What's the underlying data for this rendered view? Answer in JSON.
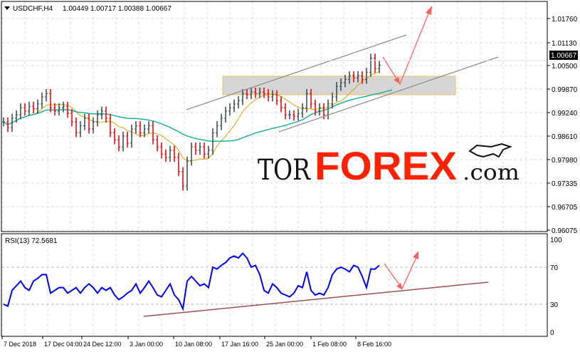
{
  "header": {
    "symbol": "USDCHF,H4",
    "ohlc": "1.00449 1.00717 1.00388 1.00667"
  },
  "price_axis": [
    "1.01760",
    "1.01130",
    "1.00500",
    "0.99870",
    "0.99240",
    "0.98610",
    "0.97980",
    "0.97335",
    "0.96705",
    "0.96075"
  ],
  "current_price": "1.00667",
  "rsi_label": "RSI(13) 72.5681",
  "rsi_axis": [
    "100",
    "70",
    "30",
    "0"
  ],
  "time_axis": [
    "7 Dec 2018",
    "17 Dec 04:00",
    "24 Dec 12:00",
    "3 Jan 00:00",
    "10 Jan 08:00",
    "17 Jan 16:00",
    "25 Jan 00:00",
    "1 Feb 08:00",
    "8 Feb 16:00"
  ],
  "logo": {
    "part1": "TOR",
    "part2": "FOREX",
    "part3": ".com"
  },
  "colors": {
    "up_bar": "#37474f",
    "down_bar": "#e00000",
    "ma_fast": "#e0a000",
    "ma_slow": "#20b0a0",
    "rsi": "#0000ff",
    "arrow": "#ff6060",
    "trend": "#a05050",
    "logo_red": "#ff2200"
  },
  "chart_data": {
    "type": "ohlc",
    "symbol": "USDCHF",
    "timeframe": "H4",
    "ylim": [
      0.96075,
      1.0176
    ],
    "close_approx": [
      0.9899,
      0.9884,
      0.9909,
      0.9918,
      0.9937,
      0.9928,
      0.9941,
      0.9934,
      0.9947,
      0.9966,
      0.9975,
      0.9937,
      0.9928,
      0.9937,
      0.9941,
      0.9922,
      0.9899,
      0.987,
      0.9889,
      0.9909,
      0.988,
      0.9899,
      0.9918,
      0.9928,
      0.9909,
      0.987,
      0.9851,
      0.9832,
      0.9861,
      0.9842,
      0.988,
      0.9889,
      0.987,
      0.988,
      0.9889,
      0.9851,
      0.9832,
      0.9813,
      0.9804,
      0.9823,
      0.9804,
      0.9766,
      0.9727,
      0.9794,
      0.9832,
      0.9823,
      0.9832,
      0.9813,
      0.9823,
      0.987,
      0.9889,
      0.9909,
      0.9928,
      0.9937,
      0.9947,
      0.9956,
      0.9975,
      0.9972,
      0.9979,
      0.9975,
      0.9979,
      0.9975,
      0.9966,
      0.9972,
      0.9956,
      0.9937,
      0.9918,
      0.9918,
      0.9914,
      0.9922,
      0.9937,
      0.9975,
      0.9947,
      0.9928,
      0.9937,
      0.9918,
      0.9947,
      0.9966,
      0.9994,
      1.0004,
      1.0013,
      1.0023,
      1.0017,
      1.0023,
      1.0013,
      1.0032,
      1.007,
      1.0042,
      1.0051
    ],
    "rsi_period": 13,
    "rsi_levels": [
      30,
      70
    ],
    "rsi_approx": [
      30,
      28,
      45,
      50,
      55,
      48,
      45,
      55,
      58,
      62,
      62,
      42,
      45,
      48,
      48,
      42,
      45,
      48,
      42,
      48,
      52,
      48,
      42,
      48,
      45,
      48,
      40,
      35,
      38,
      42,
      45,
      52,
      42,
      48,
      55,
      48,
      40,
      38,
      45,
      52,
      40,
      35,
      25,
      55,
      60,
      55,
      50,
      52,
      48,
      70,
      68,
      72,
      75,
      80,
      82,
      80,
      85,
      80,
      70,
      72,
      62,
      45,
      42,
      52,
      48,
      42,
      40,
      38,
      42,
      50,
      48,
      65,
      45,
      40,
      42,
      40,
      48,
      62,
      68,
      70,
      68,
      65,
      72,
      70,
      60,
      48,
      68,
      68,
      72
    ]
  }
}
